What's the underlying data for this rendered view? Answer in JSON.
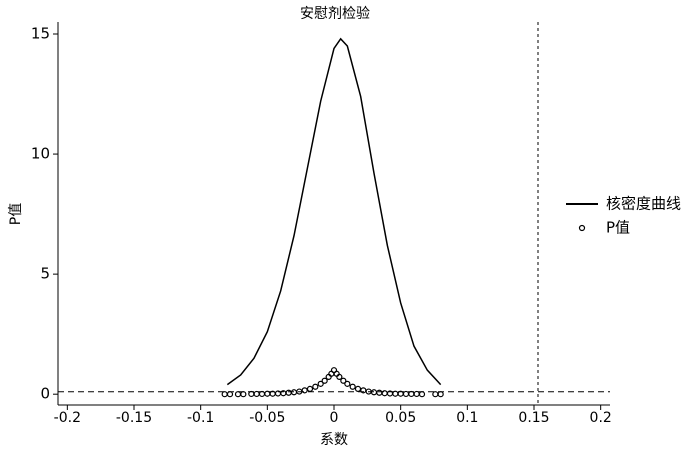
{
  "chart_data": {
    "type": "line",
    "title": "安慰剂检验",
    "x_label": "系数",
    "y_label": "P值",
    "series": [
      {
        "name": "核密度曲线",
        "type": "line",
        "color": "#000000",
        "x": [
          -0.08,
          -0.07,
          -0.06,
          -0.05,
          -0.04,
          -0.03,
          -0.02,
          -0.01,
          0,
          0.005,
          0.01,
          0.02,
          0.03,
          0.04,
          0.05,
          0.06,
          0.07,
          0.08
        ],
        "values": [
          0.4,
          0.8,
          1.5,
          2.6,
          4.3,
          6.6,
          9.4,
          12.2,
          14.4,
          14.8,
          14.5,
          12.4,
          9.2,
          6.2,
          3.8,
          2.0,
          1.0,
          0.4
        ]
      },
      {
        "name": "P值",
        "type": "scatter",
        "color": "#000000",
        "x": [
          -0.082,
          -0.078,
          -0.072,
          -0.068,
          -0.062,
          -0.058,
          -0.054,
          -0.05,
          -0.046,
          -0.042,
          -0.038,
          -0.034,
          -0.03,
          -0.026,
          -0.022,
          -0.018,
          -0.014,
          -0.01,
          -0.007,
          -0.004,
          -0.002,
          0,
          0.002,
          0.004,
          0.007,
          0.01,
          0.014,
          0.018,
          0.022,
          0.026,
          0.03,
          0.034,
          0.038,
          0.042,
          0.046,
          0.05,
          0.054,
          0.058,
          0.062,
          0.066,
          0.076,
          0.08
        ],
        "values": [
          0,
          0,
          0,
          0,
          0.01,
          0.01,
          0.01,
          0.02,
          0.02,
          0.03,
          0.04,
          0.06,
          0.08,
          0.11,
          0.16,
          0.22,
          0.31,
          0.43,
          0.56,
          0.72,
          0.85,
          1.0,
          0.85,
          0.72,
          0.56,
          0.43,
          0.31,
          0.22,
          0.16,
          0.11,
          0.08,
          0.06,
          0.04,
          0.03,
          0.02,
          0.02,
          0.01,
          0.01,
          0.01,
          0,
          0,
          0
        ]
      }
    ],
    "vline": 0.153,
    "hline": 0.1,
    "xlim": [
      -0.207,
      0.207
    ],
    "ylim": [
      -0.45,
      15.5
    ],
    "xticks": [
      -0.2,
      -0.15,
      -0.1,
      -0.05,
      0,
      0.05,
      0.1,
      0.15,
      0.2
    ],
    "yticks": [
      0,
      5,
      10,
      15
    ],
    "legend": "right"
  }
}
